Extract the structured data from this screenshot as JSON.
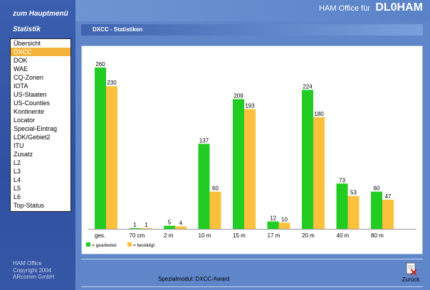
{
  "sidebar": {
    "main_menu_link": "zum Hauptmenü",
    "section_title": "Statistik",
    "items": [
      {
        "label": "Übersicht"
      },
      {
        "label": "DXCC"
      },
      {
        "label": "DOK"
      },
      {
        "label": "WAE"
      },
      {
        "label": "CQ-Zonen"
      },
      {
        "label": "IOTA"
      },
      {
        "label": "US-Staaten"
      },
      {
        "label": "US-Counties"
      },
      {
        "label": "Kontinente"
      },
      {
        "label": "Locator"
      },
      {
        "label": "Special-Eintrag"
      },
      {
        "label": "LDK/Gebiet2"
      },
      {
        "label": "ITU"
      },
      {
        "label": "Zusatz"
      },
      {
        "label": "L2"
      },
      {
        "label": "L3"
      },
      {
        "label": "L4"
      },
      {
        "label": "L5"
      },
      {
        "label": "L6"
      },
      {
        "label": "Top-Status"
      }
    ],
    "active_index": 1,
    "footer": {
      "line1": "HAM Office",
      "line2": "Copyright 2004",
      "line3": "ARcomm GmbH"
    }
  },
  "header": {
    "label": "HAM Office für",
    "callsign": "DL0HAM"
  },
  "section": {
    "title": "DXCC - Statistiken"
  },
  "chart_data": {
    "type": "bar",
    "categories": [
      "ges.",
      "70 cm",
      "2 m",
      "10 m",
      "15 m",
      "17 m",
      "20 m",
      "40 m",
      "80 m"
    ],
    "series": [
      {
        "name": "= gearbeitet",
        "color": "#22cc22",
        "values": [
          260,
          1,
          5,
          137,
          209,
          12,
          224,
          73,
          60
        ]
      },
      {
        "name": "= bestätigt",
        "color": "#fcc13c",
        "values": [
          230,
          1,
          4,
          60,
          193,
          10,
          180,
          53,
          47
        ]
      }
    ],
    "ylim": [
      0,
      260
    ],
    "legend_position": "bottom-left",
    "grid": false
  },
  "footer": {
    "module": "Spezialmodul: DXCC-Award",
    "back_label": "Zurück"
  }
}
